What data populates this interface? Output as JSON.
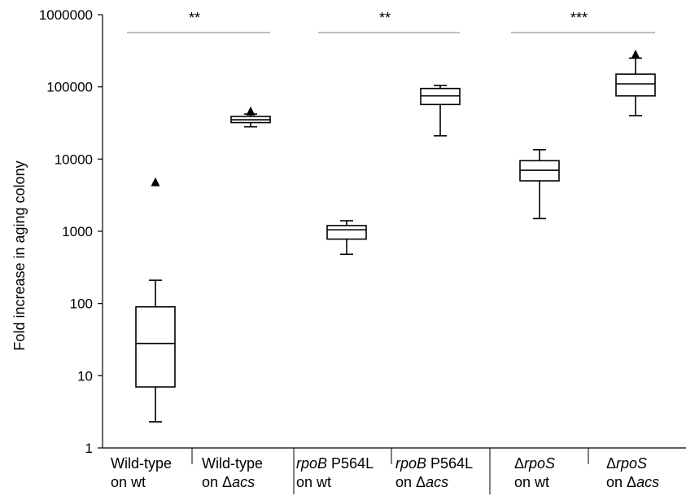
{
  "chart_data": {
    "type": "box",
    "ylabel": "Fold increase in aging colony",
    "yscale": "log",
    "ylim": [
      1,
      1000000
    ],
    "yticks": [
      {
        "value": 1,
        "label": "1"
      },
      {
        "value": 10,
        "label": "10"
      },
      {
        "value": 100,
        "label": "100"
      },
      {
        "value": 1000,
        "label": "1000"
      },
      {
        "value": 10000,
        "label": "10000"
      },
      {
        "value": 100000,
        "label": "100000"
      },
      {
        "value": 1000000,
        "label": "1000000"
      }
    ],
    "categories": [
      {
        "line1": [
          {
            "text": "Wild-type",
            "italic": false
          }
        ],
        "line2": [
          {
            "text": "on wt",
            "italic": false
          }
        ]
      },
      {
        "line1": [
          {
            "text": "Wild-type",
            "italic": false
          }
        ],
        "line2": [
          {
            "text": "on ",
            "italic": false
          },
          {
            "text": "Δ",
            "italic": false
          },
          {
            "text": "acs",
            "italic": true
          }
        ]
      },
      {
        "line1": [
          {
            "text": "rpoB",
            "italic": true
          },
          {
            "text": " P564L",
            "italic": false
          }
        ],
        "line2": [
          {
            "text": "on wt",
            "italic": false
          }
        ]
      },
      {
        "line1": [
          {
            "text": "rpoB",
            "italic": true
          },
          {
            "text": " P564L",
            "italic": false
          }
        ],
        "line2": [
          {
            "text": "on ",
            "italic": false
          },
          {
            "text": "Δ",
            "italic": false
          },
          {
            "text": "acs",
            "italic": true
          }
        ]
      },
      {
        "line1": [
          {
            "text": "Δ",
            "italic": false
          },
          {
            "text": "rpoS",
            "italic": true
          }
        ],
        "line2": [
          {
            "text": "on wt",
            "italic": false
          }
        ]
      },
      {
        "line1": [
          {
            "text": "Δ",
            "italic": false
          },
          {
            "text": "rpoS",
            "italic": true
          }
        ],
        "line2": [
          {
            "text": "on ",
            "italic": false
          },
          {
            "text": "Δ",
            "italic": false
          },
          {
            "text": "acs",
            "italic": true
          }
        ]
      }
    ],
    "boxes": [
      {
        "whisker_low": 2.3,
        "q1": 7,
        "median": 28,
        "q3": 90,
        "whisker_high": 210,
        "outliers": [
          4800
        ]
      },
      {
        "whisker_low": 28000,
        "q1": 32000,
        "median": 35000,
        "q3": 39000,
        "whisker_high": 42000,
        "outliers": [
          46000
        ]
      },
      {
        "whisker_low": 480,
        "q1": 780,
        "median": 1050,
        "q3": 1200,
        "whisker_high": 1400,
        "outliers": []
      },
      {
        "whisker_low": 21000,
        "q1": 57000,
        "median": 75000,
        "q3": 95000,
        "whisker_high": 105000,
        "outliers": []
      },
      {
        "whisker_low": 1500,
        "q1": 5000,
        "median": 7000,
        "q3": 9500,
        "whisker_high": 13500,
        "outliers": []
      },
      {
        "whisker_low": 40000,
        "q1": 75000,
        "median": 110000,
        "q3": 150000,
        "whisker_high": 250000,
        "outliers": [
          280000
        ]
      }
    ],
    "significance": [
      {
        "from": 0,
        "to": 1,
        "label": "**"
      },
      {
        "from": 2,
        "to": 3,
        "label": "**"
      },
      {
        "from": 4,
        "to": 5,
        "label": "***"
      }
    ],
    "colors": {
      "stroke": "#000000",
      "significance_line": "#808080",
      "background": "#ffffff"
    }
  }
}
